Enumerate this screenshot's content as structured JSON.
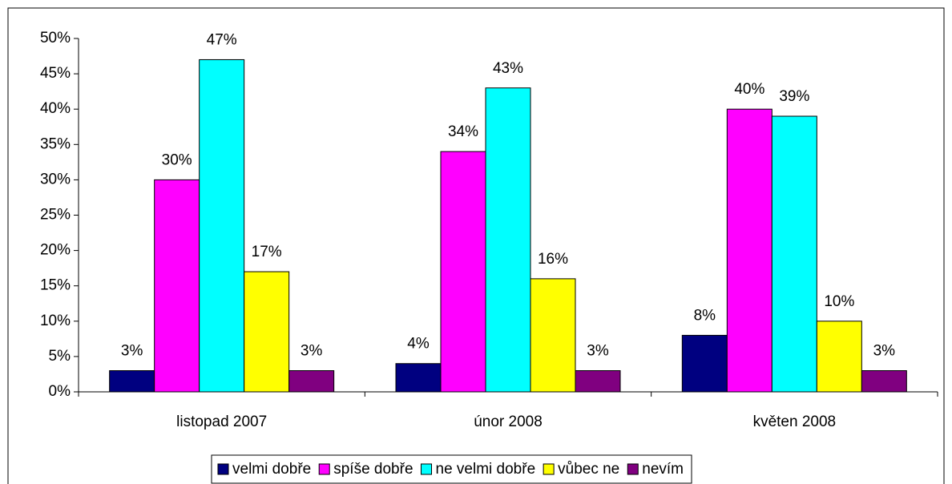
{
  "chart_data": {
    "type": "bar",
    "categories": [
      "listopad 2007",
      "únor 2008",
      "květen 2008"
    ],
    "series": [
      {
        "name": "velmi dobře",
        "color": "#000080",
        "values": [
          3,
          4,
          8
        ],
        "value_labels": [
          "3%",
          "4%",
          "8%"
        ]
      },
      {
        "name": "spíše dobře",
        "color": "#ff00ff",
        "values": [
          30,
          34,
          40
        ],
        "value_labels": [
          "30%",
          "34%",
          "40%"
        ]
      },
      {
        "name": "ne velmi dobře",
        "color": "#00ffff",
        "values": [
          47,
          43,
          39
        ],
        "value_labels": [
          "47%",
          "43%",
          "39%"
        ]
      },
      {
        "name": "vůbec ne",
        "color": "#ffff00",
        "values": [
          17,
          16,
          10
        ],
        "value_labels": [
          "17%",
          "16%",
          "10%"
        ]
      },
      {
        "name": "nevím",
        "color": "#800080",
        "values": [
          3,
          3,
          3
        ],
        "value_labels": [
          "3%",
          "3%",
          "3%"
        ]
      }
    ],
    "ylim": [
      0,
      50
    ],
    "yticks": [
      {
        "value": 0,
        "label": "0%"
      },
      {
        "value": 5,
        "label": "5%"
      },
      {
        "value": 10,
        "label": "10%"
      },
      {
        "value": 15,
        "label": "15%"
      },
      {
        "value": 20,
        "label": "20%"
      },
      {
        "value": 25,
        "label": "25%"
      },
      {
        "value": 30,
        "label": "30%"
      },
      {
        "value": 35,
        "label": "35%"
      },
      {
        "value": 40,
        "label": "40%"
      },
      {
        "value": 45,
        "label": "45%"
      },
      {
        "value": 50,
        "label": "50%"
      }
    ],
    "grid": false,
    "legend": "bottom"
  }
}
